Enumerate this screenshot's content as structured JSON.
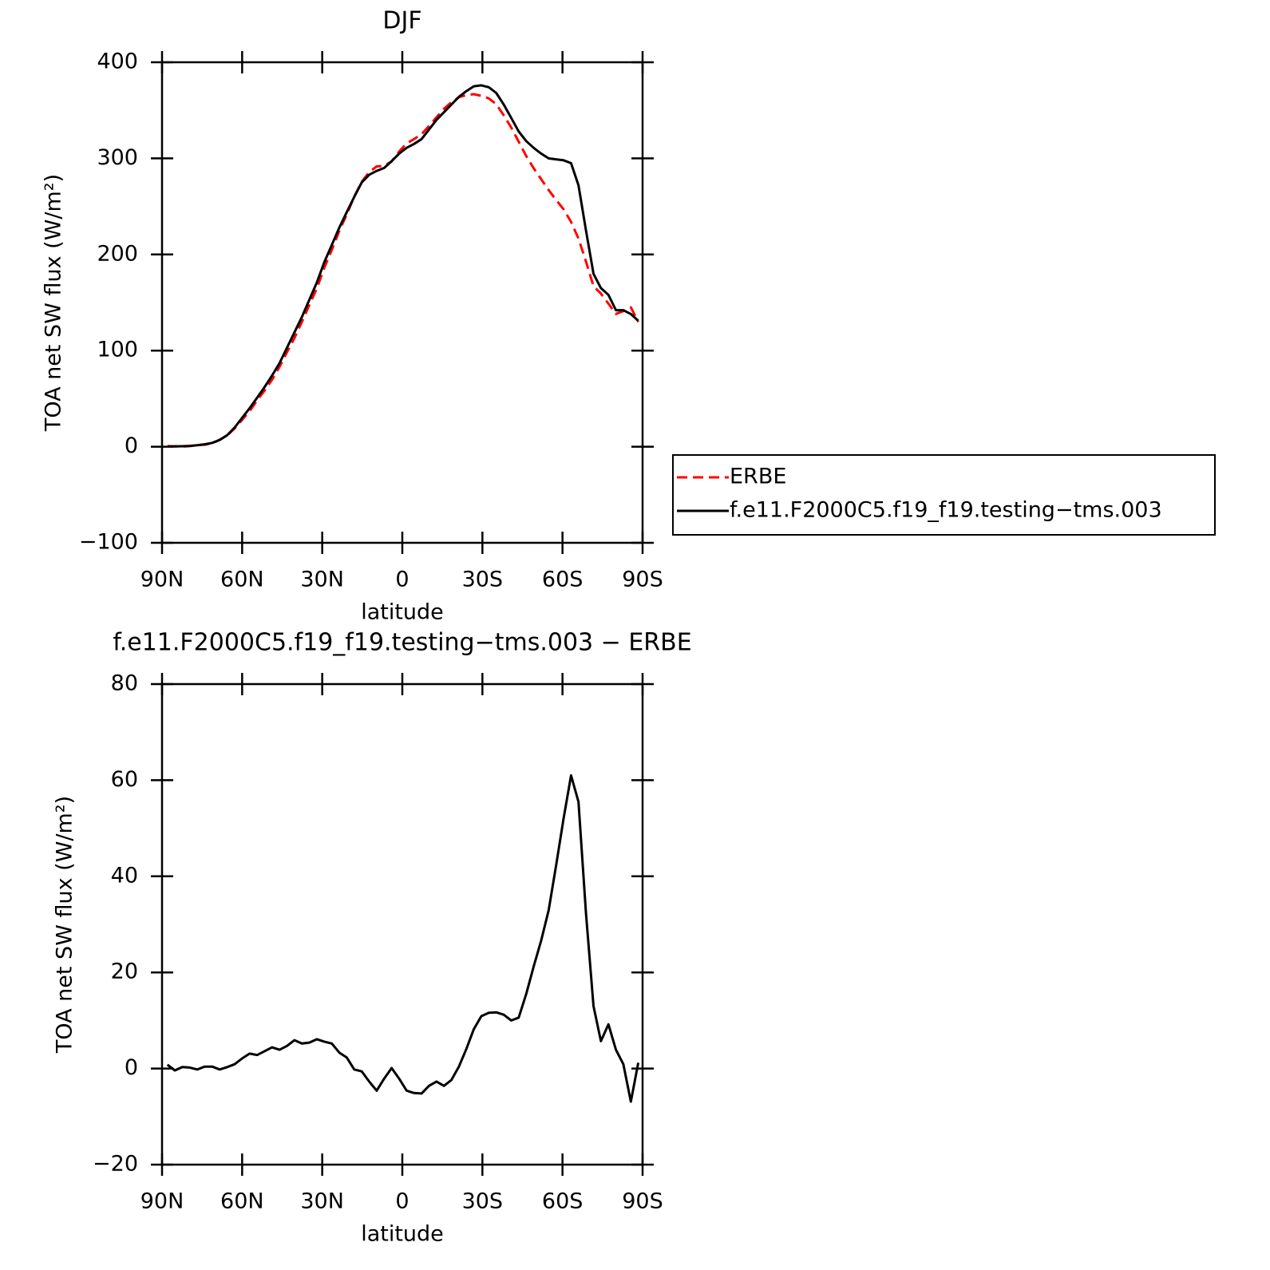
{
  "chart_data": [
    {
      "type": "line",
      "title": "DJF",
      "xlabel": "latitude",
      "ylabel": "TOA net SW flux (W/m²)",
      "xlim": [
        90,
        -90
      ],
      "ylim": [
        -100,
        400
      ],
      "xticks": [
        {
          "value": 90,
          "label": "90N"
        },
        {
          "value": 60,
          "label": "60N"
        },
        {
          "value": 30,
          "label": "30N"
        },
        0,
        {
          "value": -30,
          "label": "30S"
        },
        {
          "value": -60,
          "label": "60S"
        },
        {
          "value": -90,
          "label": "90S"
        }
      ],
      "yticks": [
        {
          "value": -100,
          "label": "−100"
        },
        0,
        100,
        200,
        300,
        400
      ],
      "legend": "right",
      "x": [
        88,
        85.2,
        82.4,
        79.6,
        76.8,
        74,
        71.2,
        68.4,
        65.6,
        62.8,
        60,
        57.2,
        54.4,
        51.6,
        48.8,
        46,
        43.2,
        40.4,
        37.6,
        34.8,
        32,
        29.2,
        26.4,
        23.6,
        20.8,
        18,
        15.2,
        12.4,
        9.6,
        6.8,
        4,
        1.2,
        -1.6,
        -4.4,
        -7.2,
        -10,
        -12.8,
        -15.6,
        -18.4,
        -21.2,
        -24,
        -26.8,
        -29.6,
        -32.4,
        -35.2,
        -38,
        -40.8,
        -43.6,
        -46.4,
        -49.2,
        -52,
        -54.8,
        -57.6,
        -60.4,
        -63.2,
        -66,
        -68.8,
        -71.6,
        -74.4,
        -77.2,
        -80,
        -82.8,
        -85.6,
        -88.4
      ],
      "series": [
        {
          "name": "ERBE",
          "color": "#ff0000",
          "style": "dashed",
          "values": [
            0,
            0.5,
            0.2,
            0.6,
            1.7,
            2.1,
            3.6,
            7.2,
            11.7,
            19.1,
            27.9,
            36.9,
            48.2,
            58.4,
            69.6,
            83.1,
            98.3,
            113.1,
            129.8,
            147.6,
            164.9,
            186.4,
            204.8,
            224.7,
            241.7,
            260.2,
            275.6,
            285.7,
            291.6,
            292.1,
            296.9,
            307.1,
            315.6,
            320.1,
            325.2,
            333.6,
            342.7,
            351.6,
            358.4,
            363.6,
            365.9,
            366.8,
            365.1,
            362.4,
            356.3,
            344.8,
            332,
            317.4,
            302.5,
            289.8,
            278.4,
            267.1,
            256.8,
            247,
            234,
            216.5,
            192.7,
            167,
            159.3,
            148.8,
            138.1,
            141.1,
            144.9,
            129.8
          ]
        },
        {
          "name": "f.e11.F2000C5.f19_f19.testing−tms.003",
          "color": "#000000",
          "style": "solid",
          "values": [
            0.5,
            0.3,
            0.5,
            0.8,
            1.5,
            2.5,
            4,
            7,
            12,
            20,
            30,
            40,
            51,
            62,
            74,
            87,
            103,
            119,
            135,
            153,
            171,
            192,
            210,
            228,
            244,
            260,
            275,
            283,
            287,
            290,
            297,
            305,
            311,
            315,
            320,
            330,
            340,
            348,
            356,
            364,
            370,
            375,
            376,
            374,
            368,
            356,
            342,
            328,
            318,
            311,
            305,
            300,
            299,
            298,
            295,
            272,
            225,
            180,
            165,
            158,
            142,
            142,
            138,
            131
          ]
        }
      ]
    },
    {
      "type": "line",
      "title": "f.e11.F2000C5.f19_f19.testing−tms.003 − ERBE",
      "xlabel": "latitude",
      "ylabel": "TOA net SW flux (W/m²)",
      "xlim": [
        90,
        -90
      ],
      "ylim": [
        -20,
        80
      ],
      "xticks": [
        {
          "value": 90,
          "label": "90N"
        },
        {
          "value": 60,
          "label": "60N"
        },
        {
          "value": 30,
          "label": "30N"
        },
        0,
        {
          "value": -30,
          "label": "30S"
        },
        {
          "value": -60,
          "label": "60S"
        },
        {
          "value": -90,
          "label": "90S"
        }
      ],
      "yticks": [
        {
          "value": -20,
          "label": "−20"
        },
        0,
        20,
        40,
        60,
        80
      ],
      "x": [
        88,
        85.2,
        82.4,
        79.6,
        76.8,
        74,
        71.2,
        68.4,
        65.6,
        62.8,
        60,
        57.2,
        54.4,
        51.6,
        48.8,
        46,
        43.2,
        40.4,
        37.6,
        34.8,
        32,
        29.2,
        26.4,
        23.6,
        20.8,
        18,
        15.2,
        12.4,
        9.6,
        6.8,
        4,
        1.2,
        -1.6,
        -4.4,
        -7.2,
        -10,
        -12.8,
        -15.6,
        -18.4,
        -21.2,
        -24,
        -26.8,
        -29.6,
        -32.4,
        -35.2,
        -38,
        -40.8,
        -43.6,
        -46.4,
        -49.2,
        -52,
        -54.8,
        -57.6,
        -60.4,
        -63.2,
        -66,
        -68.8,
        -71.6,
        -74.4,
        -77.2,
        -80,
        -82.8,
        -85.6,
        -88.4
      ],
      "series": [
        {
          "color": "#000000",
          "style": "solid",
          "values": [
            0.8,
            -0.4,
            0.3,
            0.2,
            -0.2,
            0.4,
            0.4,
            -0.2,
            0.3,
            0.9,
            2.1,
            3.1,
            2.8,
            3.6,
            4.4,
            3.9,
            4.7,
            5.9,
            5.2,
            5.4,
            6.1,
            5.6,
            5.2,
            3.3,
            2.3,
            -0.2,
            -0.6,
            -2.7,
            -4.6,
            -2.1,
            0.1,
            -2.1,
            -4.6,
            -5.1,
            -5.2,
            -3.6,
            -2.7,
            -3.6,
            -2.4,
            0.4,
            4.1,
            8.2,
            10.9,
            11.6,
            11.7,
            11.2,
            10,
            10.6,
            15.5,
            21.2,
            26.6,
            32.9,
            42.2,
            52,
            61,
            55.5,
            32.3,
            13,
            5.7,
            9.2,
            3.9,
            0.9,
            -6.9,
            1.2
          ]
        }
      ]
    }
  ]
}
